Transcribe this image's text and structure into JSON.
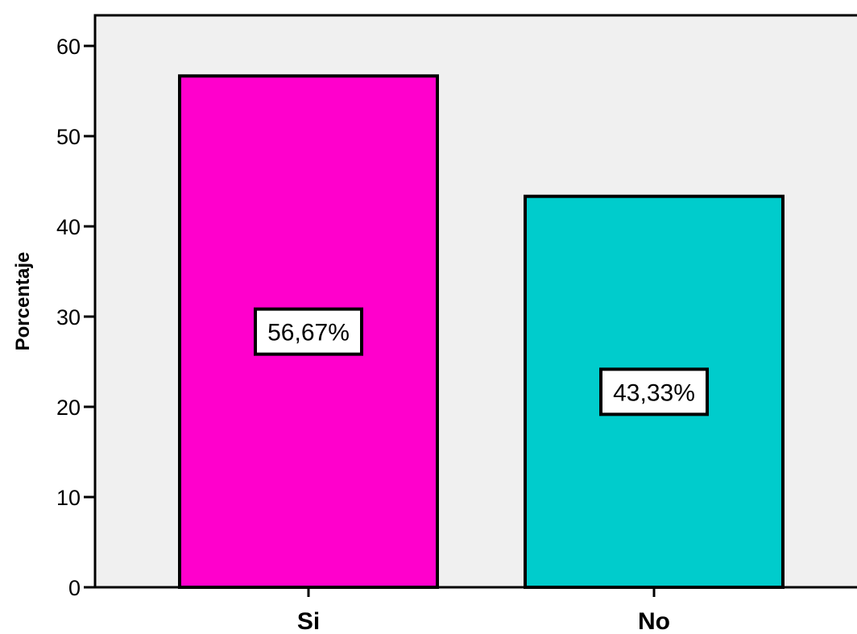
{
  "chart_data": {
    "type": "bar",
    "categories": [
      "Si",
      "No"
    ],
    "values": [
      56.67,
      43.33
    ],
    "data_labels": [
      "56,67%",
      "43,33%"
    ],
    "colors": [
      "#ff00cc",
      "#00cccc"
    ],
    "ylabel": "Porcentaje",
    "xlabel": "",
    "ylim": [
      0,
      60
    ],
    "yticks": [
      0,
      10,
      20,
      30,
      40,
      50,
      60
    ],
    "plot_background": "#f0f0f0",
    "grid": false,
    "legend": false
  }
}
